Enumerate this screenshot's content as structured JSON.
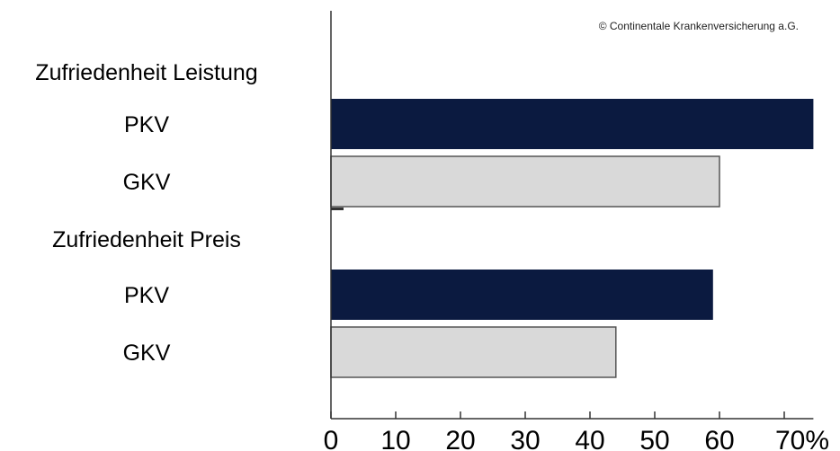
{
  "copyright": "© Continentale Krankenversicherung a.G.",
  "chart_data": {
    "type": "bar",
    "orientation": "horizontal",
    "categories": [
      {
        "label": "Zufriedenheit Leistung",
        "kind": "group"
      },
      {
        "label": "PKV",
        "kind": "bar",
        "value": 74.5
      },
      {
        "label": "GKV",
        "kind": "bar",
        "value": 60
      },
      {
        "label": "Zufriedenheit Preis",
        "kind": "group"
      },
      {
        "label": "PKV",
        "kind": "bar",
        "value": 59
      },
      {
        "label": "GKV",
        "kind": "bar",
        "value": 44
      }
    ],
    "xticks": [
      "0",
      "10",
      "20",
      "30",
      "40",
      "50",
      "60",
      "70%"
    ],
    "xlim": [
      0,
      74.5
    ],
    "colors": {
      "PKV": "#0b1a40",
      "GKV": "#d9d9d9",
      "axis": "#333333",
      "gkv_border": "#555555"
    },
    "grid": false
  }
}
